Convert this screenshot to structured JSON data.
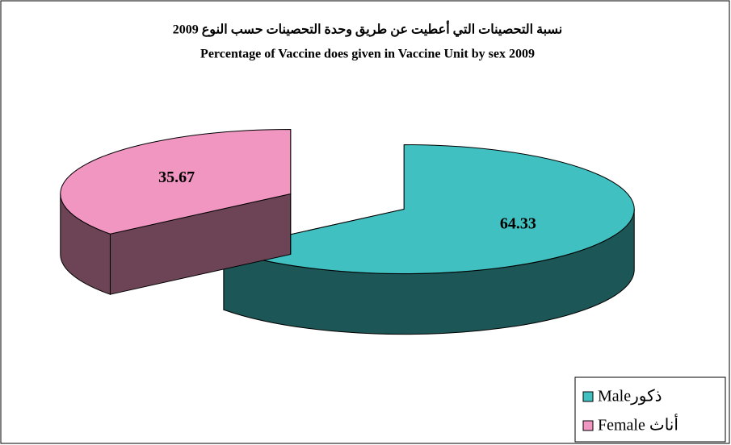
{
  "chart_data": {
    "type": "pie3d",
    "title": "نسبة التحصينات التي أعطيت عن طريق وحدة التحصينات حسب النوع 2009",
    "subtitle": "Percentage of Vaccine does given in Vaccine Unit by sex 2009",
    "categories": [
      "Maleذكور",
      "Female  أناث"
    ],
    "values": [
      64.33,
      35.67
    ],
    "colors": [
      "#40c0c0",
      "#f096c0"
    ],
    "legend": "bottom-right"
  }
}
